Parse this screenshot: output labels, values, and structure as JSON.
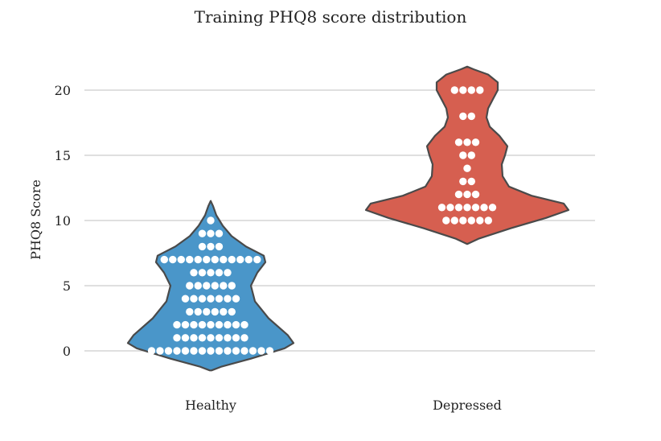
{
  "chart_data": {
    "type": "violin",
    "title": "Training PHQ8 score distribution",
    "xlabel": "",
    "ylabel": "PHQ8 Score",
    "categories": [
      "Healthy",
      "Depressed"
    ],
    "ylim": [
      -1.5,
      21.8
    ],
    "yticks": [
      0,
      5,
      10,
      15,
      20
    ],
    "grid": "horizontal",
    "colors": {
      "Healthy": "#4a96c9",
      "Depressed": "#d65f50",
      "outline": "#4a4a4a",
      "points": "#ffffff"
    },
    "series": [
      {
        "category": "Healthy",
        "range": [
          -1.5,
          11.5
        ],
        "points": [
          {
            "score": 0,
            "count": 15
          },
          {
            "score": 1,
            "count": 9
          },
          {
            "score": 2,
            "count": 9
          },
          {
            "score": 3,
            "count": 6
          },
          {
            "score": 4,
            "count": 7
          },
          {
            "score": 5,
            "count": 6
          },
          {
            "score": 6,
            "count": 5
          },
          {
            "score": 7,
            "count": 12
          },
          {
            "score": 8,
            "count": 3
          },
          {
            "score": 9,
            "count": 3
          },
          {
            "score": 10,
            "count": 1
          }
        ]
      },
      {
        "category": "Depressed",
        "range": [
          8.2,
          21.8
        ],
        "points": [
          {
            "score": 10,
            "count": 6
          },
          {
            "score": 11,
            "count": 7
          },
          {
            "score": 12,
            "count": 3
          },
          {
            "score": 13,
            "count": 2
          },
          {
            "score": 14,
            "count": 1
          },
          {
            "score": 15,
            "count": 2
          },
          {
            "score": 16,
            "count": 3
          },
          {
            "score": 18,
            "count": 2
          },
          {
            "score": 20,
            "count": 4
          }
        ]
      }
    ]
  }
}
